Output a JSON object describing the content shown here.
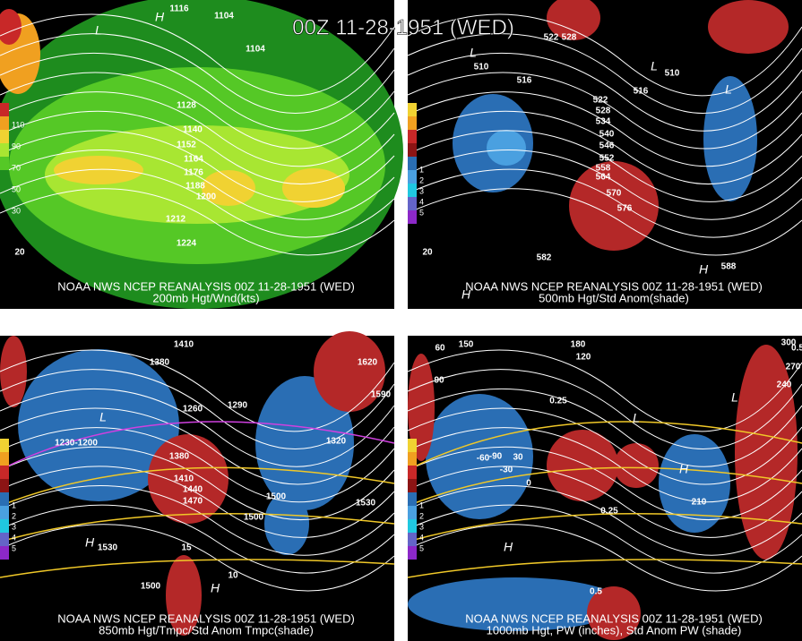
{
  "title": "00Z 11-28-1951 (WED)",
  "panels": [
    {
      "agency": "NOAA NWS NCEP REANALYSIS 00Z 11-28-1951 (WED)",
      "field": "200mb Hgt/Wnd(kts)",
      "legend_labels": [
        "110",
        "90",
        "70",
        "50",
        "30"
      ],
      "contour_labels": [
        "1116",
        "1104",
        "1104",
        "1128",
        "1140",
        "1152",
        "1164",
        "1176",
        "1188",
        "1200",
        "1212",
        "1224",
        "20"
      ],
      "centers": [
        "H",
        "L"
      ]
    },
    {
      "agency": "NOAA NWS NCEP REANALYSIS 00Z 11-28-1951 (WED)",
      "field": "500mb Hgt/Std Anom(shade)",
      "legend_labels": [
        "1",
        "2",
        "3",
        "4",
        "5"
      ],
      "contour_labels": [
        "522",
        "528",
        "510",
        "516",
        "522",
        "528",
        "534",
        "540",
        "546",
        "552",
        "558",
        "564",
        "570",
        "576",
        "582",
        "588",
        "516",
        "510",
        "20"
      ],
      "centers": [
        "L",
        "L",
        "L",
        "H",
        "H"
      ]
    },
    {
      "agency": "NOAA NWS NCEP REANALYSIS 00Z 11-28-1951 (WED)",
      "field": "850mb Hgt/Tmpc/Std Anom Tmpc(shade)",
      "legend_labels": [
        "1",
        "2",
        "3",
        "4",
        "5"
      ],
      "contour_labels": [
        "1380",
        "1410",
        "1290",
        "1260",
        "1230-1200",
        "1380",
        "1410",
        "1440",
        "1470",
        "1500",
        "1530",
        "1620",
        "1590",
        "1320",
        "1500",
        "1530",
        "1500",
        "15",
        "10"
      ],
      "centers": [
        "L",
        "H",
        "H"
      ]
    },
    {
      "agency": "NOAA NWS NCEP REANALYSIS 00Z 11-28-1951 (WED)",
      "field": "1000mb Hgt, PW (inches), Std Anom PW (shade)",
      "legend_labels": [
        "1",
        "2",
        "3",
        "4",
        "5"
      ],
      "contour_labels": [
        "150",
        "180",
        "120",
        "60",
        "30",
        "0",
        "-30",
        "-60",
        "-90",
        "90",
        "210",
        "240",
        "270",
        "300",
        "0.5",
        "0.25",
        "0.25",
        "0.5"
      ],
      "centers": [
        "L",
        "L",
        "H",
        "H"
      ]
    }
  ]
}
